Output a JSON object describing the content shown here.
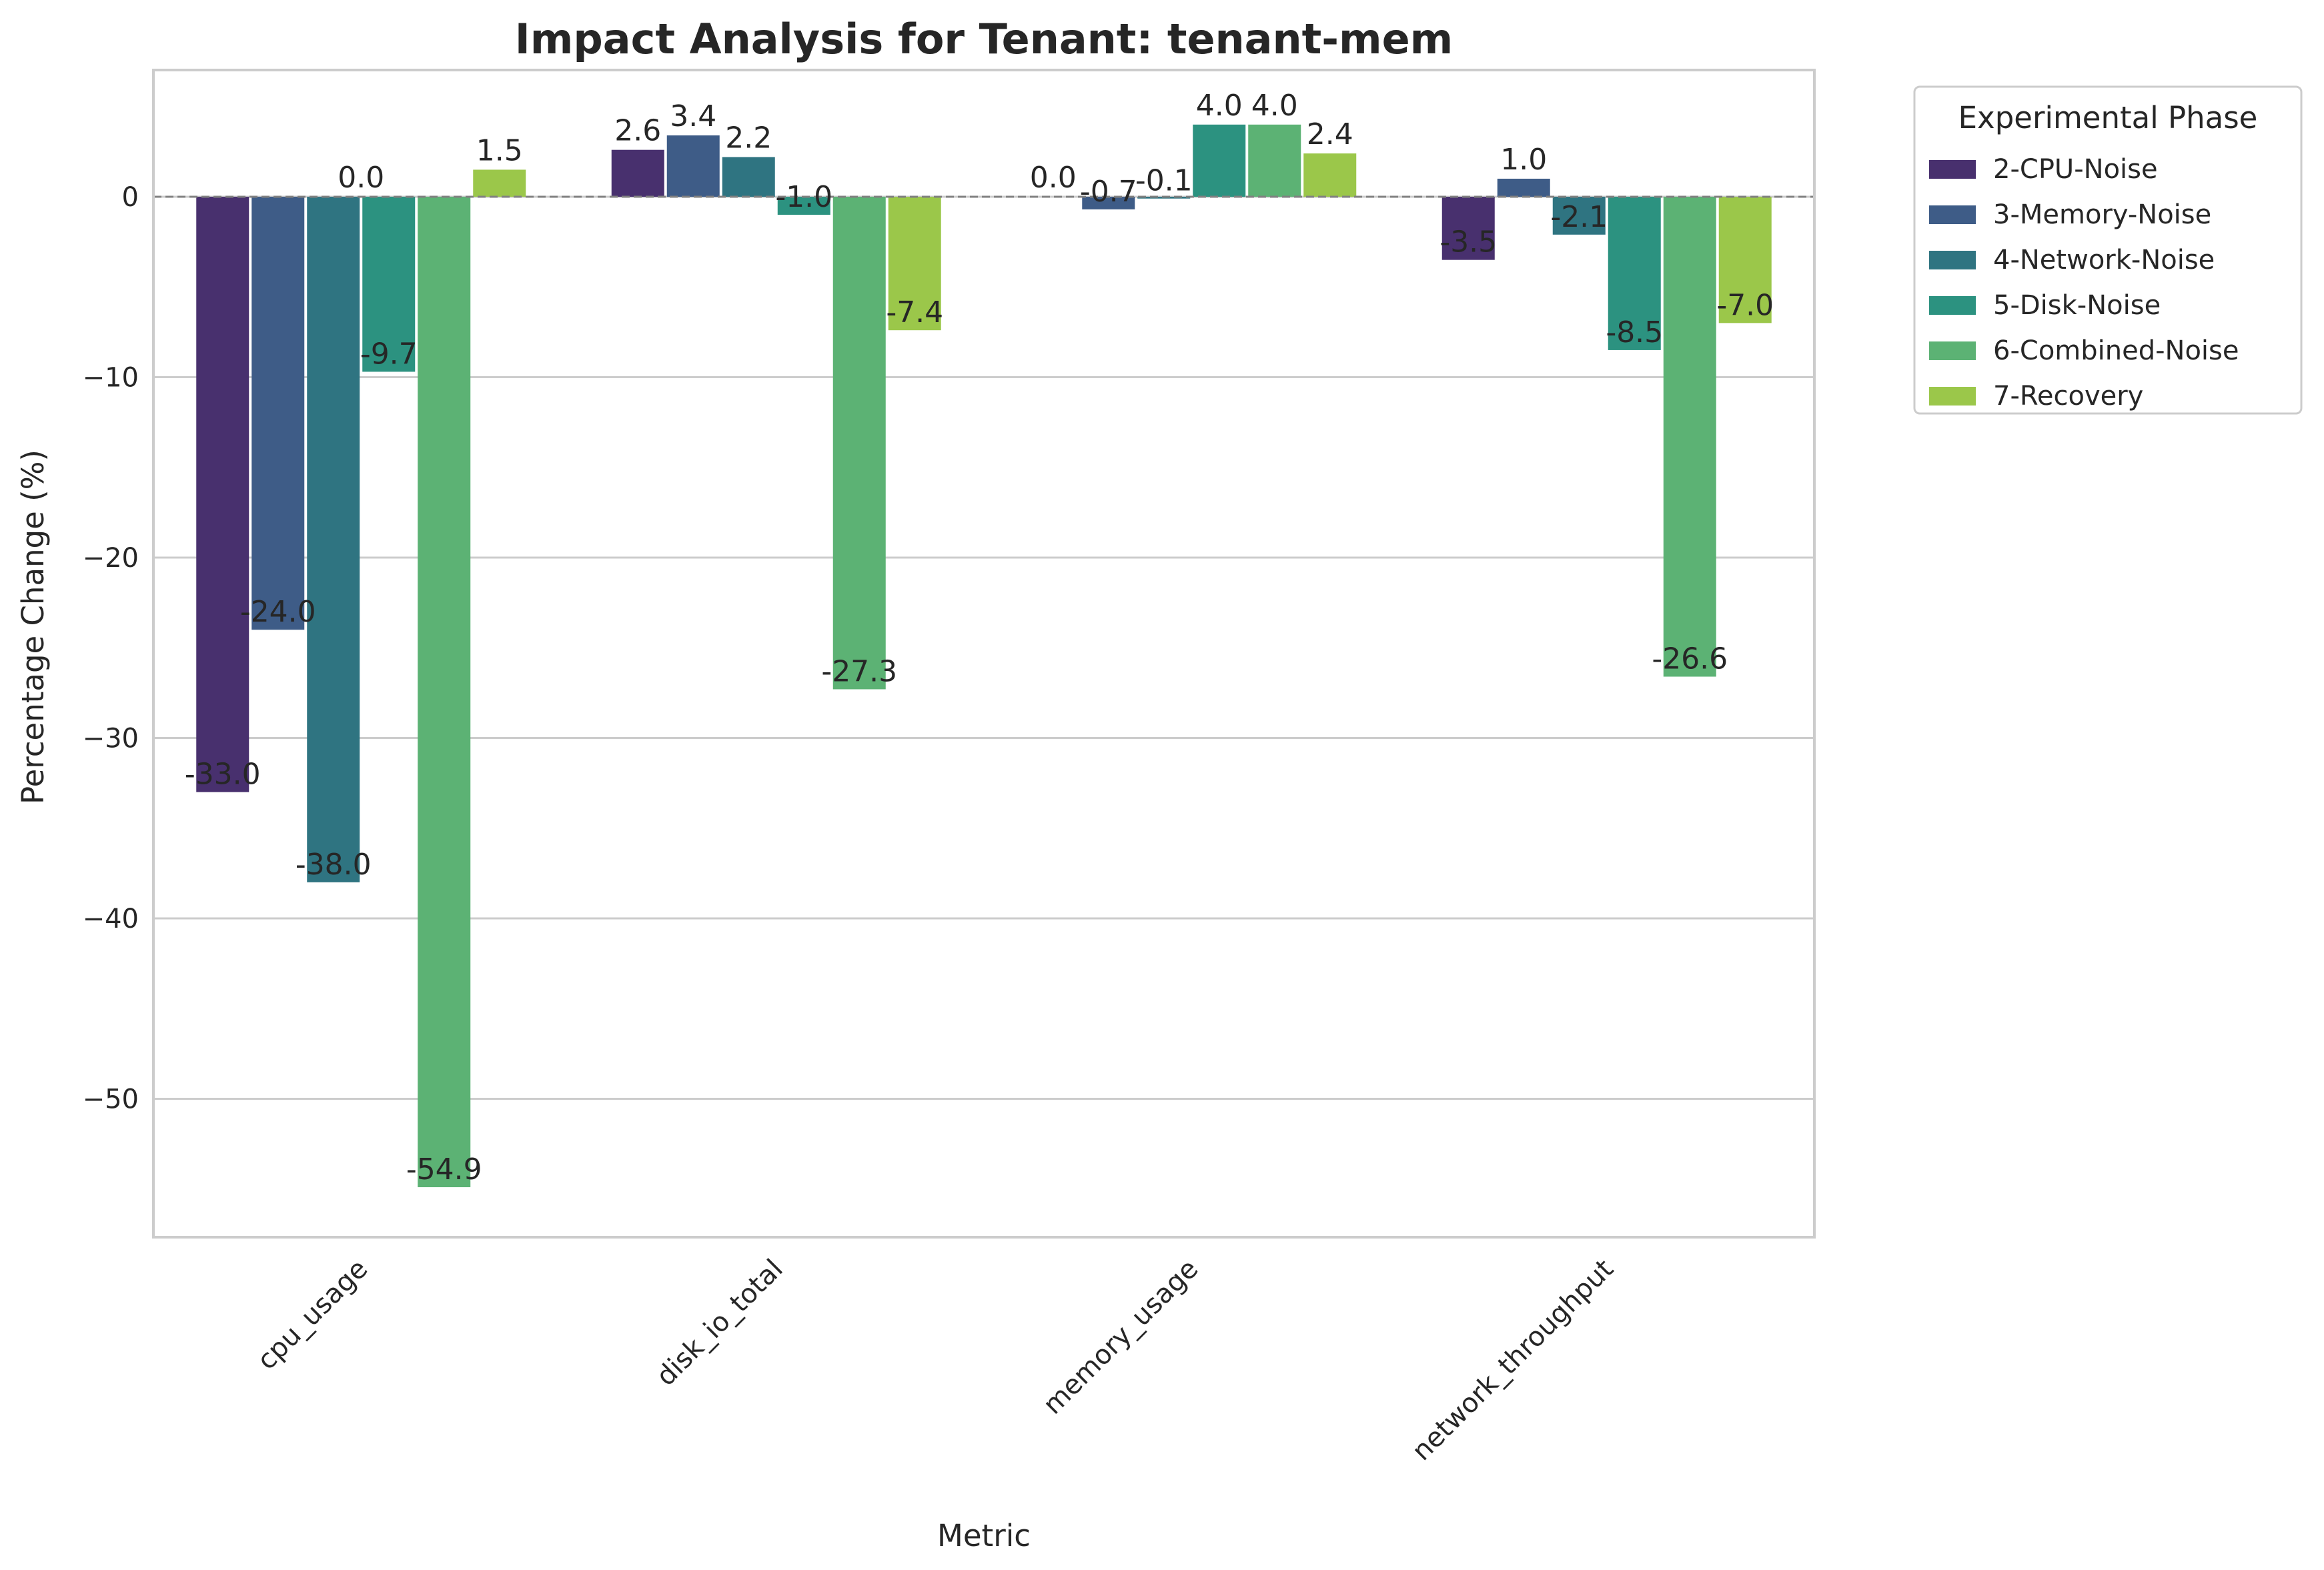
{
  "chart_data": {
    "type": "bar",
    "title": "Impact Analysis for Tenant: tenant-mem",
    "xlabel": "Metric",
    "ylabel": "Percentage Change (%)",
    "categories": [
      "cpu_usage",
      "disk_io_total",
      "memory_usage",
      "network_throughput"
    ],
    "ylim": [
      -57.6,
      7.0
    ],
    "yticks": [
      0,
      -10,
      -20,
      -30,
      -40,
      -50
    ],
    "grid": "horizontal",
    "reference_line": 0,
    "legend": {
      "title": "Experimental Phase",
      "placement": "outside-upper-right"
    },
    "series": [
      {
        "name": "2-CPU-Noise",
        "color": "#48306e",
        "values": [
          -33.0,
          2.6,
          null,
          -3.5
        ],
        "labels": [
          "-33.0",
          "2.6",
          "",
          "-3.5"
        ]
      },
      {
        "name": "3-Memory-Noise",
        "color": "#3e5c87",
        "values": [
          -24.0,
          3.4,
          -0.7,
          1.0
        ],
        "labels": [
          "-24.0",
          "3.4",
          "-0.7",
          "1.0"
        ]
      },
      {
        "name": "4-Network-Noise",
        "color": "#2f7481",
        "values": [
          -38.0,
          2.2,
          -0.1,
          -2.1
        ],
        "labels": [
          "-38.0",
          "2.2",
          "-0.1",
          "-2.1"
        ]
      },
      {
        "name": "5-Disk-Noise",
        "color": "#2c9280",
        "values": [
          -9.7,
          -1.0,
          4.0,
          -8.5
        ],
        "labels": [
          "-9.7",
          "-1.0",
          "4.0",
          "-8.5"
        ]
      },
      {
        "name": "6-Combined-Noise",
        "color": "#5cb274",
        "values": [
          -54.9,
          -27.3,
          4.0,
          -26.6
        ],
        "labels": [
          "-54.9",
          "-27.3",
          "4.0",
          "-26.6"
        ]
      },
      {
        "name": "7-Recovery",
        "color": "#9bc74a",
        "values": [
          1.5,
          -7.4,
          2.4,
          -7.0
        ],
        "labels": [
          "1.5",
          "-7.4",
          "2.4",
          "-7.0"
        ]
      }
    ],
    "annotations": [
      {
        "text": "0.0",
        "category": "cpu_usage",
        "value": 0.0
      },
      {
        "text": "0.0",
        "category": "memory_usage",
        "value": 0.0
      }
    ]
  }
}
